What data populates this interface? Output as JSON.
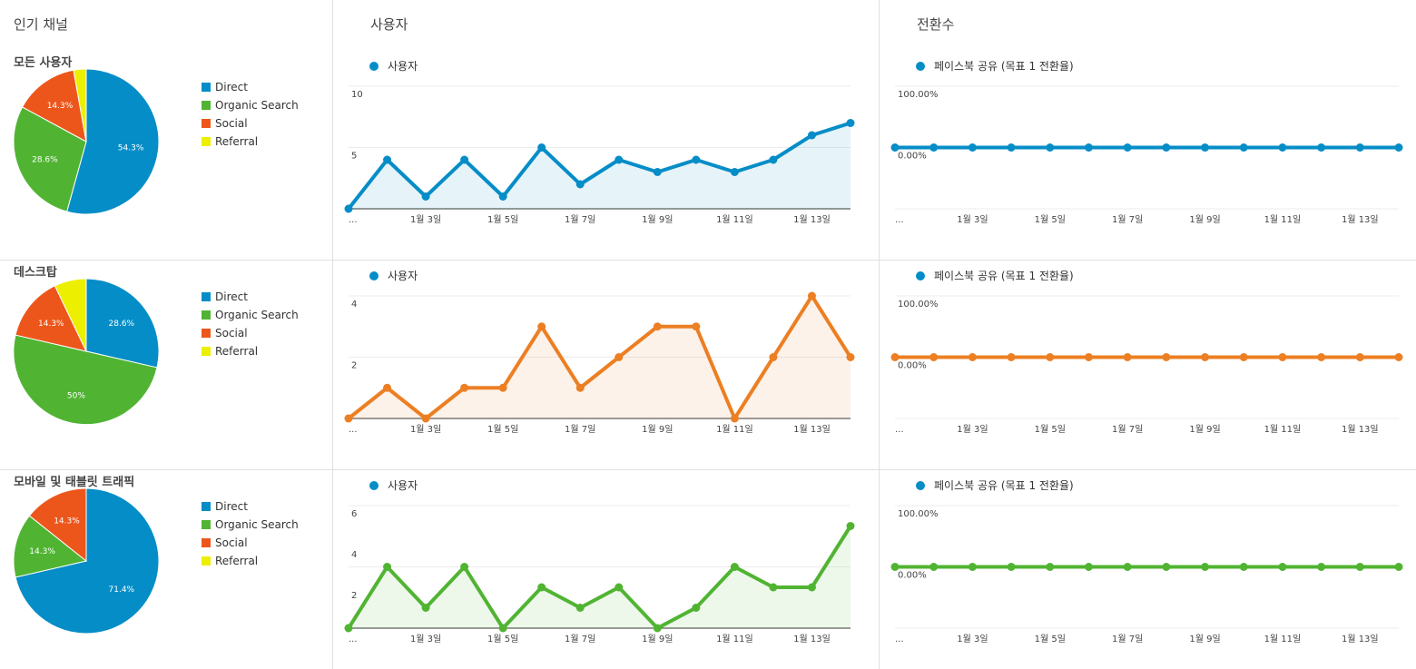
{
  "columns": {
    "channels_title": "인기 채널",
    "users_title": "사용자",
    "conversions_title": "전환수"
  },
  "colors": {
    "direct": "#058dc7",
    "organic": "#50b432",
    "social": "#ed561b",
    "referral": "#edef00",
    "blue": "#058dc7",
    "orange": "#ec7f23",
    "green": "#50b432"
  },
  "legend_labels": [
    "Direct",
    "Organic Search",
    "Social",
    "Referral"
  ],
  "x_tick_labels": [
    "...",
    "1월 3일",
    "1월 5일",
    "1월 7일",
    "1월 9일",
    "1월 11일",
    "1월 13일"
  ],
  "rows": [
    {
      "segment_title": "모든 사용자",
      "pie_labels": [
        "54.3%",
        "28.6%",
        "14.3%"
      ],
      "users_legend": "사용자",
      "users_y_ticks": [
        "10",
        "5"
      ],
      "conv_legend": "페이스북 공유 (목표 1 전환율)",
      "conv_y_ticks": [
        "100.00%",
        "0.00%"
      ]
    },
    {
      "segment_title": "데스크탑",
      "pie_labels": [
        "28.6%",
        "50%",
        "14.3%"
      ],
      "users_legend": "사용자",
      "users_y_ticks": [
        "4",
        "2"
      ],
      "conv_legend": "페이스북 공유 (목표 1 전환율)",
      "conv_y_ticks": [
        "100.00%",
        "0.00%"
      ]
    },
    {
      "segment_title": "모바일 및 태블릿 트래픽",
      "pie_labels": [
        "71.4%",
        "14.3%",
        "14.3%"
      ],
      "users_legend": "사용자",
      "users_y_ticks": [
        "6",
        "4",
        "2"
      ],
      "conv_legend": "페이스북 공유 (목표 1 전환율)",
      "conv_y_ticks": [
        "100.00%",
        "0.00%"
      ]
    }
  ],
  "chart_data": [
    {
      "type": "pie",
      "title": "모든 사용자",
      "categories": [
        "Direct",
        "Organic Search",
        "Social",
        "Referral"
      ],
      "values": [
        54.3,
        28.6,
        14.3,
        2.8
      ]
    },
    {
      "type": "line",
      "categories": [
        "1월 1일",
        "1월 2일",
        "1월 3일",
        "1월 4일",
        "1월 5일",
        "1월 6일",
        "1월 7일",
        "1월 8일",
        "1월 9일",
        "1월 10일",
        "1월 11일",
        "1월 12일",
        "1월 13일",
        "1월 14일"
      ],
      "series": [
        {
          "name": "사용자",
          "values": [
            0,
            4,
            1,
            4,
            1,
            5,
            2,
            4,
            3,
            4,
            3,
            4,
            6,
            7
          ]
        }
      ],
      "ylim": [
        0,
        10
      ],
      "area": true,
      "color": "#058dc7"
    },
    {
      "type": "line",
      "categories": [
        "1월 1일",
        "1월 2일",
        "1월 3일",
        "1월 4일",
        "1월 5일",
        "1월 6일",
        "1월 7일",
        "1월 8일",
        "1월 9일",
        "1월 10일",
        "1월 11일",
        "1월 12일",
        "1월 13일",
        "1월 14일"
      ],
      "series": [
        {
          "name": "페이스북 공유 (목표 1 전환율)",
          "values": [
            0,
            0,
            0,
            0,
            0,
            0,
            0,
            0,
            0,
            0,
            0,
            0,
            0,
            0
          ]
        }
      ],
      "ylim": [
        -100,
        100
      ],
      "color": "#058dc7"
    },
    {
      "type": "pie",
      "title": "데스크탑",
      "categories": [
        "Direct",
        "Organic Search",
        "Social",
        "Referral"
      ],
      "values": [
        28.6,
        50,
        14.3,
        7.1
      ]
    },
    {
      "type": "line",
      "categories": [
        "1월 1일",
        "1월 2일",
        "1월 3일",
        "1월 4일",
        "1월 5일",
        "1월 6일",
        "1월 7일",
        "1월 8일",
        "1월 9일",
        "1월 10일",
        "1월 11일",
        "1월 12일",
        "1월 13일",
        "1월 14일"
      ],
      "series": [
        {
          "name": "사용자",
          "values": [
            0,
            1,
            0,
            1,
            1,
            3,
            1,
            2,
            3,
            3,
            0,
            2,
            4,
            2
          ]
        }
      ],
      "ylim": [
        0,
        4
      ],
      "area": true,
      "color": "#ec7f23"
    },
    {
      "type": "line",
      "categories": [
        "1월 1일",
        "1월 2일",
        "1월 3일",
        "1월 4일",
        "1월 5일",
        "1월 6일",
        "1월 7일",
        "1월 8일",
        "1월 9일",
        "1월 10일",
        "1월 11일",
        "1월 12일",
        "1월 13일",
        "1월 14일"
      ],
      "series": [
        {
          "name": "페이스북 공유 (목표 1 전환율)",
          "values": [
            0,
            0,
            0,
            0,
            0,
            0,
            0,
            0,
            0,
            0,
            0,
            0,
            0,
            0
          ]
        }
      ],
      "ylim": [
        -100,
        100
      ],
      "color": "#ec7f23"
    },
    {
      "type": "pie",
      "title": "모바일 및 태블릿 트래픽",
      "categories": [
        "Direct",
        "Organic Search",
        "Social",
        "Referral"
      ],
      "values": [
        71.4,
        14.3,
        14.3,
        0
      ]
    },
    {
      "type": "line",
      "categories": [
        "1월 1일",
        "1월 2일",
        "1월 3일",
        "1월 4일",
        "1월 5일",
        "1월 6일",
        "1월 7일",
        "1월 8일",
        "1월 9일",
        "1월 10일",
        "1월 11일",
        "1월 12일",
        "1월 13일",
        "1월 14일"
      ],
      "series": [
        {
          "name": "사용자",
          "values": [
            0,
            3,
            1,
            3,
            0,
            2,
            1,
            2,
            0,
            1,
            3,
            2,
            2,
            5
          ]
        }
      ],
      "ylim": [
        0,
        6
      ],
      "area": true,
      "color": "#50b432"
    },
    {
      "type": "line",
      "categories": [
        "1월 1일",
        "1월 2일",
        "1월 3일",
        "1월 4일",
        "1월 5일",
        "1월 6일",
        "1월 7일",
        "1월 8일",
        "1월 9일",
        "1월 10일",
        "1월 11일",
        "1월 12일",
        "1월 13일",
        "1월 14일"
      ],
      "series": [
        {
          "name": "페이스북 공유 (목표 1 전환율)",
          "values": [
            0,
            0,
            0,
            0,
            0,
            0,
            0,
            0,
            0,
            0,
            0,
            0,
            0,
            0
          ]
        }
      ],
      "ylim": [
        -100,
        100
      ],
      "color": "#50b432"
    }
  ]
}
